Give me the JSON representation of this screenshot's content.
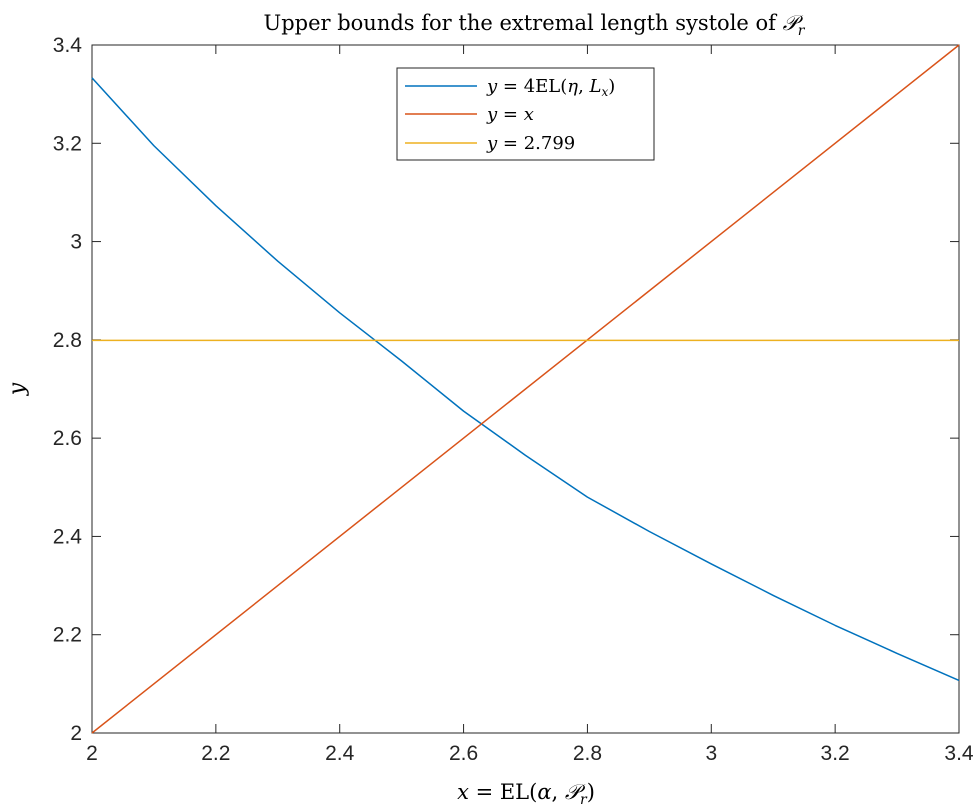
{
  "chart_data": {
    "type": "line",
    "title": {
      "text": "Upper bounds for the extremal length systole of ",
      "math_symbol": "𝒫",
      "math_subscript": "r"
    },
    "xlabel": {
      "lhs": "x",
      "eq": " = EL(",
      "alpha": "α",
      "comma": ", ",
      "P": "𝒫",
      "sub": "r",
      "close": ")"
    },
    "ylabel": "y",
    "xlim": [
      2,
      3.4
    ],
    "ylim": [
      2,
      3.4
    ],
    "xticks": [
      2,
      2.2,
      2.4,
      2.6,
      2.8,
      3,
      3.2,
      3.4
    ],
    "xtick_labels": [
      "2",
      "2.2",
      "2.4",
      "2.6",
      "2.8",
      "3",
      "3.2",
      "3.4"
    ],
    "yticks": [
      2,
      2.2,
      2.4,
      2.6,
      2.8,
      3,
      3.2,
      3.4
    ],
    "ytick_labels": [
      "2",
      "2.2",
      "2.4",
      "2.6",
      "2.8",
      "3",
      "3.2",
      "3.4"
    ],
    "grid": false,
    "legend_position": "top-center",
    "series": [
      {
        "name": "y = 4EL(η, Lx)",
        "legend_parts": {
          "lhs": "y",
          "eq": " = 4EL(",
          "eta": "η",
          "comma": ", ",
          "L": "L",
          "sub": "x",
          "close": ")"
        },
        "color": "#0072BD",
        "x": [
          2.0,
          2.1,
          2.2,
          2.3,
          2.4,
          2.5,
          2.6,
          2.7,
          2.8,
          2.9,
          3.0,
          3.1,
          3.2,
          3.3,
          3.4
        ],
        "y": [
          3.333,
          3.195,
          3.073,
          2.96,
          2.855,
          2.757,
          2.655,
          2.565,
          2.48,
          2.41,
          2.344,
          2.28,
          2.219,
          2.162,
          2.107
        ]
      },
      {
        "name": "y = x",
        "legend_parts": {
          "lhs": "y",
          "eq": " = ",
          "rhs": "x"
        },
        "color": "#D95319",
        "x": [
          2.0,
          3.4
        ],
        "y": [
          2.0,
          3.4
        ]
      },
      {
        "name": "y = 2.799",
        "legend_parts": {
          "lhs": "y",
          "eq": " = 2.799"
        },
        "color": "#EDB120",
        "x": [
          2.0,
          3.4
        ],
        "y": [
          2.799,
          2.799
        ]
      }
    ]
  }
}
